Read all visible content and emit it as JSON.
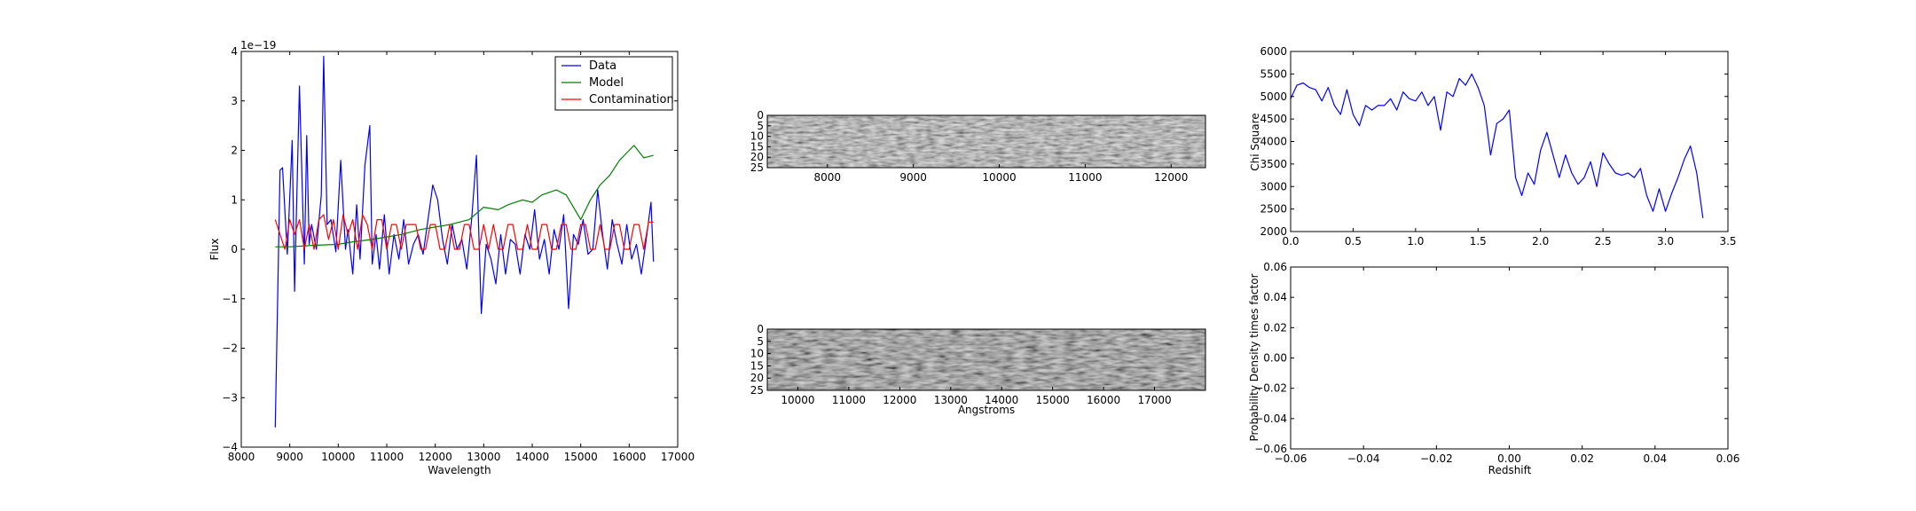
{
  "chart_data": [
    {
      "panel": "spectrum",
      "type": "line",
      "xlabel": "Wavelength",
      "ylabel": "Flux",
      "offset_text": "1e−19",
      "xlim": [
        8000,
        17000
      ],
      "ylim": [
        -4,
        4
      ],
      "xticks": [
        8000,
        9000,
        10000,
        11000,
        12000,
        13000,
        14000,
        15000,
        16000,
        17000
      ],
      "xtick_labels": [
        "8000",
        "9000",
        "10000",
        "11000",
        "12000",
        "13000",
        "14000",
        "15000",
        "16000",
        "17000"
      ],
      "yticks": [
        -4,
        -3,
        -2,
        -1,
        0,
        1,
        2,
        3,
        4
      ],
      "ytick_labels": [
        "−4",
        "−3",
        "−2",
        "−1",
        "0",
        "1",
        "2",
        "3",
        "4"
      ],
      "legend_position": "top-right",
      "series": [
        {
          "name": "Data",
          "color": "#0000ff",
          "x": [
            8700,
            8800,
            8850,
            8950,
            9050,
            9100,
            9200,
            9300,
            9350,
            9400,
            9450,
            9550,
            9650,
            9700,
            9770,
            9850,
            9950,
            10050,
            10150,
            10200,
            10300,
            10380,
            10450,
            10550,
            10650,
            10700,
            10780,
            10850,
            10950,
            11050,
            11150,
            11250,
            11350,
            11450,
            11550,
            11650,
            11750,
            11850,
            11950,
            12050,
            12150,
            12250,
            12350,
            12450,
            12550,
            12650,
            12750,
            12850,
            12950,
            13050,
            13150,
            13250,
            13350,
            13450,
            13550,
            13650,
            13750,
            13850,
            13950,
            14050,
            14150,
            14250,
            14350,
            14450,
            14550,
            14650,
            14750,
            14850,
            14950,
            15050,
            15150,
            15250,
            15350,
            15450,
            15550,
            15650,
            15750,
            15850,
            15950,
            16050,
            16150,
            16250,
            16350,
            16450,
            16500
          ],
          "y": [
            -3.6,
            1.6,
            1.65,
            -0.1,
            2.2,
            -0.85,
            3.3,
            -0.3,
            2.3,
            0.1,
            0.5,
            0.0,
            1.1,
            3.9,
            0.5,
            0.6,
            -0.05,
            1.8,
            0.0,
            0.4,
            -0.5,
            0.9,
            -0.2,
            1.7,
            2.5,
            -0.3,
            0.3,
            -0.4,
            0.7,
            -0.5,
            0.3,
            -0.2,
            0.6,
            -0.3,
            0.1,
            0.3,
            -0.1,
            0.6,
            1.3,
            1.0,
            0.2,
            -0.3,
            0.5,
            0.0,
            0.2,
            -0.4,
            0.6,
            1.9,
            -1.3,
            0.1,
            -0.2,
            -0.7,
            0.3,
            -0.5,
            0.2,
            0.1,
            -0.5,
            0.3,
            0.0,
            0.8,
            -0.2,
            0.2,
            -0.5,
            0.4,
            0.0,
            0.7,
            -1.2,
            0.3,
            0.1,
            0.6,
            -0.1,
            0.0,
            1.2,
            0.3,
            -0.4,
            0.6,
            0.1,
            -0.3,
            0.5,
            -0.2,
            0.1,
            -0.5,
            0.2,
            0.95,
            -0.25
          ]
        },
        {
          "name": "Model",
          "color": "#008000",
          "x": [
            8700,
            9000,
            9500,
            10000,
            10300,
            10700,
            11000,
            11300,
            11700,
            12000,
            12300,
            12500,
            12700,
            13000,
            13300,
            13500,
            13800,
            14000,
            14200,
            14500,
            14700,
            15000,
            15200,
            15400,
            15600,
            15800,
            16000,
            16100,
            16300,
            16500
          ],
          "y": [
            0.05,
            0.05,
            0.08,
            0.1,
            0.15,
            0.2,
            0.25,
            0.3,
            0.4,
            0.45,
            0.5,
            0.55,
            0.6,
            0.85,
            0.8,
            0.9,
            1.0,
            0.95,
            1.1,
            1.2,
            1.1,
            0.6,
            1.0,
            1.3,
            1.5,
            1.8,
            2.0,
            2.1,
            1.85,
            1.9
          ]
        },
        {
          "name": "Contamination",
          "color": "#ff0000",
          "x": [
            8700,
            8900,
            9000,
            9100,
            9200,
            9300,
            9400,
            9500,
            9600,
            9700,
            9800,
            9900,
            10000,
            10100,
            10200,
            10300,
            10400,
            10500,
            10600,
            10700,
            10800,
            10900,
            11000,
            11100,
            11200,
            11300,
            11400,
            11500,
            11600,
            11700,
            11800,
            11900,
            12000,
            12100,
            12200,
            12300,
            12400,
            12500,
            12600,
            12700,
            12800,
            12900,
            13000,
            13100,
            13200,
            13300,
            13400,
            13500,
            13600,
            13700,
            13800,
            13900,
            14000,
            14100,
            14200,
            14300,
            14400,
            14500,
            14600,
            14700,
            14800,
            14900,
            15000,
            15100,
            15200,
            15300,
            15400,
            15500,
            15600,
            15700,
            15800,
            15900,
            16000,
            16100,
            16200,
            16300,
            16400,
            16500
          ],
          "y": [
            0.6,
            0.0,
            0.6,
            0.3,
            0.6,
            0.0,
            0.5,
            0.0,
            0.6,
            0.7,
            0.2,
            0.6,
            0.0,
            0.7,
            0.3,
            0.6,
            0.0,
            0.7,
            0.5,
            0.0,
            0.6,
            0.6,
            0.0,
            0.5,
            0.5,
            0.0,
            0.5,
            0.5,
            0.5,
            0.0,
            0.0,
            0.5,
            0.5,
            0.0,
            0.0,
            0.5,
            0.0,
            0.0,
            0.5,
            0.5,
            0.0,
            0.0,
            0.5,
            0.0,
            0.5,
            0.0,
            0.0,
            0.5,
            0.5,
            0.0,
            0.0,
            0.5,
            0.0,
            0.0,
            0.5,
            0.5,
            0.0,
            0.0,
            0.5,
            0.5,
            0.0,
            0.0,
            0.5,
            0.5,
            0.0,
            0.0,
            0.5,
            0.0,
            0.0,
            0.5,
            0.5,
            0.0,
            0.0,
            0.5,
            0.5,
            0.0,
            0.55,
            0.55
          ]
        }
      ]
    },
    {
      "panel": "image-top",
      "type": "heatmap",
      "xlim": [
        7300,
        12400
      ],
      "ylim": [
        0,
        25
      ],
      "xticks": [
        8000,
        9000,
        10000,
        11000,
        12000
      ],
      "xtick_labels": [
        "8000",
        "9000",
        "10000",
        "11000",
        "12000"
      ],
      "yticks": [
        0,
        5,
        10,
        15,
        20,
        25
      ],
      "ytick_labels": [
        "0",
        "5",
        "10",
        "15",
        "20",
        "25"
      ],
      "colormap": "gray"
    },
    {
      "panel": "image-bottom",
      "type": "heatmap",
      "xlabel": "Angstroms",
      "xlim": [
        9400,
        18000
      ],
      "ylim": [
        0,
        25
      ],
      "xticks": [
        10000,
        11000,
        12000,
        13000,
        14000,
        15000,
        16000,
        17000
      ],
      "xtick_labels": [
        "10000",
        "11000",
        "12000",
        "13000",
        "14000",
        "15000",
        "16000",
        "17000"
      ],
      "yticks": [
        0,
        5,
        10,
        15,
        20,
        25
      ],
      "ytick_labels": [
        "0",
        "5",
        "10",
        "15",
        "20",
        "25"
      ],
      "colormap": "gray"
    },
    {
      "panel": "chisq",
      "type": "line",
      "ylabel": "Chi Square",
      "xlim": [
        0,
        3.5
      ],
      "ylim": [
        2000,
        6000
      ],
      "xticks": [
        0,
        0.5,
        1.0,
        1.5,
        2.0,
        2.5,
        3.0,
        3.5
      ],
      "xtick_labels": [
        "0.0",
        "0.5",
        "1.0",
        "1.5",
        "2.0",
        "2.5",
        "3.0",
        "3.5"
      ],
      "yticks": [
        2000,
        2500,
        3000,
        3500,
        4000,
        4500,
        5000,
        5500,
        6000
      ],
      "ytick_labels": [
        "2000",
        "2500",
        "3000",
        "3500",
        "4000",
        "4500",
        "5000",
        "5500",
        "6000"
      ],
      "series": [
        {
          "color": "#0000ff",
          "x": [
            0.0,
            0.05,
            0.1,
            0.15,
            0.2,
            0.25,
            0.3,
            0.35,
            0.4,
            0.45,
            0.5,
            0.55,
            0.6,
            0.65,
            0.7,
            0.75,
            0.8,
            0.85,
            0.9,
            0.95,
            1.0,
            1.05,
            1.1,
            1.15,
            1.2,
            1.25,
            1.3,
            1.35,
            1.4,
            1.45,
            1.5,
            1.55,
            1.6,
            1.65,
            1.7,
            1.75,
            1.8,
            1.85,
            1.9,
            1.95,
            2.0,
            2.05,
            2.1,
            2.15,
            2.2,
            2.25,
            2.3,
            2.35,
            2.4,
            2.45,
            2.5,
            2.55,
            2.6,
            2.65,
            2.7,
            2.75,
            2.8,
            2.85,
            2.9,
            2.95,
            3.0,
            3.05,
            3.1,
            3.15,
            3.2,
            3.25,
            3.3
          ],
          "y": [
            4950,
            5250,
            5300,
            5200,
            5150,
            4900,
            5200,
            4800,
            4600,
            5150,
            4600,
            4350,
            4800,
            4700,
            4800,
            4800,
            4950,
            4700,
            5100,
            4950,
            4900,
            5100,
            4800,
            5000,
            4250,
            5100,
            5000,
            5400,
            5250,
            5500,
            5200,
            4800,
            3700,
            4400,
            4500,
            4700,
            3200,
            2800,
            3300,
            3050,
            3800,
            4200,
            3700,
            3200,
            3700,
            3300,
            3050,
            3200,
            3550,
            3000,
            3750,
            3500,
            3300,
            3250,
            3300,
            3200,
            3400,
            2800,
            2450,
            2950,
            2450,
            2850,
            3200,
            3600,
            3900,
            3300,
            2300
          ]
        }
      ]
    },
    {
      "panel": "pdf",
      "type": "line",
      "xlabel": "Redshift",
      "ylabel": "Probability Density times factor",
      "xlim": [
        -0.06,
        0.06
      ],
      "ylim": [
        -0.06,
        0.06
      ],
      "xticks": [
        -0.06,
        -0.04,
        -0.02,
        0.0,
        0.02,
        0.04,
        0.06
      ],
      "xtick_labels": [
        "−0.06",
        "−0.04",
        "−0.02",
        "0.00",
        "0.02",
        "0.04",
        "0.06"
      ],
      "yticks": [
        -0.06,
        -0.04,
        -0.02,
        0.0,
        0.02,
        0.04,
        0.06
      ],
      "ytick_labels": [
        "−0.06",
        "−0.04",
        "−0.02",
        "0.00",
        "0.02",
        "0.04",
        "0.06"
      ],
      "series": []
    }
  ]
}
